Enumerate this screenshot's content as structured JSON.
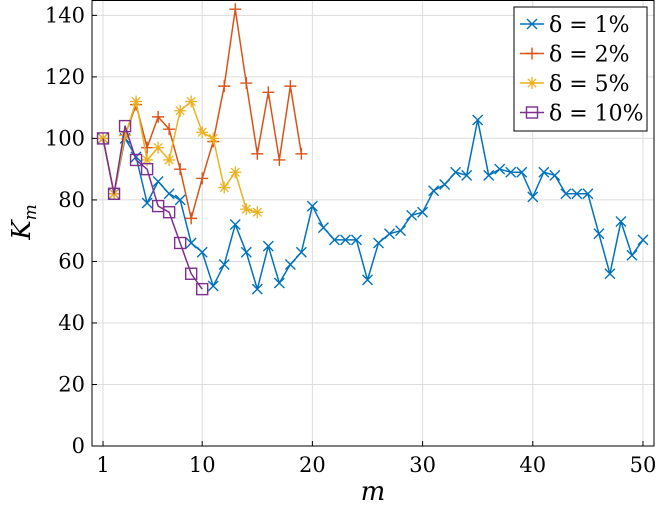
{
  "chart_data": {
    "type": "line",
    "title": "",
    "xlabel": "m",
    "ylabel": "K",
    "ylabel_sub": "m",
    "xlim": [
      0,
      51
    ],
    "ylim": [
      0,
      145
    ],
    "grid": true,
    "legend_position": "top-right",
    "xticks": [
      1,
      10,
      20,
      30,
      40,
      50
    ],
    "yticks": [
      0,
      20,
      40,
      60,
      80,
      100,
      120,
      140
    ],
    "series": [
      {
        "name": "δ = 1%",
        "color": "#0072BD",
        "marker": "x",
        "x": [
          1,
          2,
          3,
          4,
          5,
          6,
          7,
          8,
          9,
          10,
          11,
          12,
          13,
          14,
          15,
          16,
          17,
          18,
          19,
          20,
          21,
          22,
          23,
          24,
          25,
          26,
          27,
          28,
          29,
          30,
          31,
          32,
          33,
          34,
          35,
          36,
          37,
          38,
          39,
          40,
          41,
          42,
          43,
          44,
          45,
          46,
          47,
          48,
          49,
          50
        ],
        "y": [
          100,
          82,
          100,
          94,
          79,
          86,
          82,
          80,
          66,
          63,
          52,
          59,
          72,
          63,
          51,
          65,
          53,
          59,
          63,
          78,
          71,
          67,
          67,
          67,
          54,
          66,
          69,
          70,
          75,
          76,
          83,
          85,
          89,
          88,
          106,
          88,
          90,
          89,
          89,
          81,
          89,
          88,
          82,
          82,
          82,
          69,
          56,
          73,
          62,
          67
        ]
      },
      {
        "name": "δ = 2%",
        "color": "#D95319",
        "marker": "+",
        "x": [
          1,
          2,
          3,
          4,
          5,
          6,
          7,
          8,
          9,
          10,
          11,
          12,
          13,
          14,
          15,
          16,
          17,
          18,
          19
        ],
        "y": [
          100,
          82,
          101,
          111,
          97,
          107,
          103,
          90,
          74,
          87,
          99,
          117,
          142,
          118,
          95,
          115,
          93,
          117,
          95
        ]
      },
      {
        "name": "δ = 5%",
        "color": "#EDB120",
        "marker": "asterisk",
        "x": [
          1,
          2,
          3,
          4,
          5,
          6,
          7,
          8,
          9,
          10,
          11,
          12,
          13,
          14,
          15
        ],
        "y": [
          100,
          82,
          101,
          112,
          93,
          97,
          93,
          109,
          112,
          102,
          100,
          84,
          89,
          77,
          76
        ]
      },
      {
        "name": "δ = 10%",
        "color": "#7E2F8E",
        "marker": "square",
        "x": [
          1,
          2,
          3,
          4,
          5,
          6,
          7,
          8,
          9,
          10
        ],
        "y": [
          100,
          82,
          104,
          93,
          90,
          78,
          76,
          66,
          56,
          51
        ]
      }
    ]
  }
}
